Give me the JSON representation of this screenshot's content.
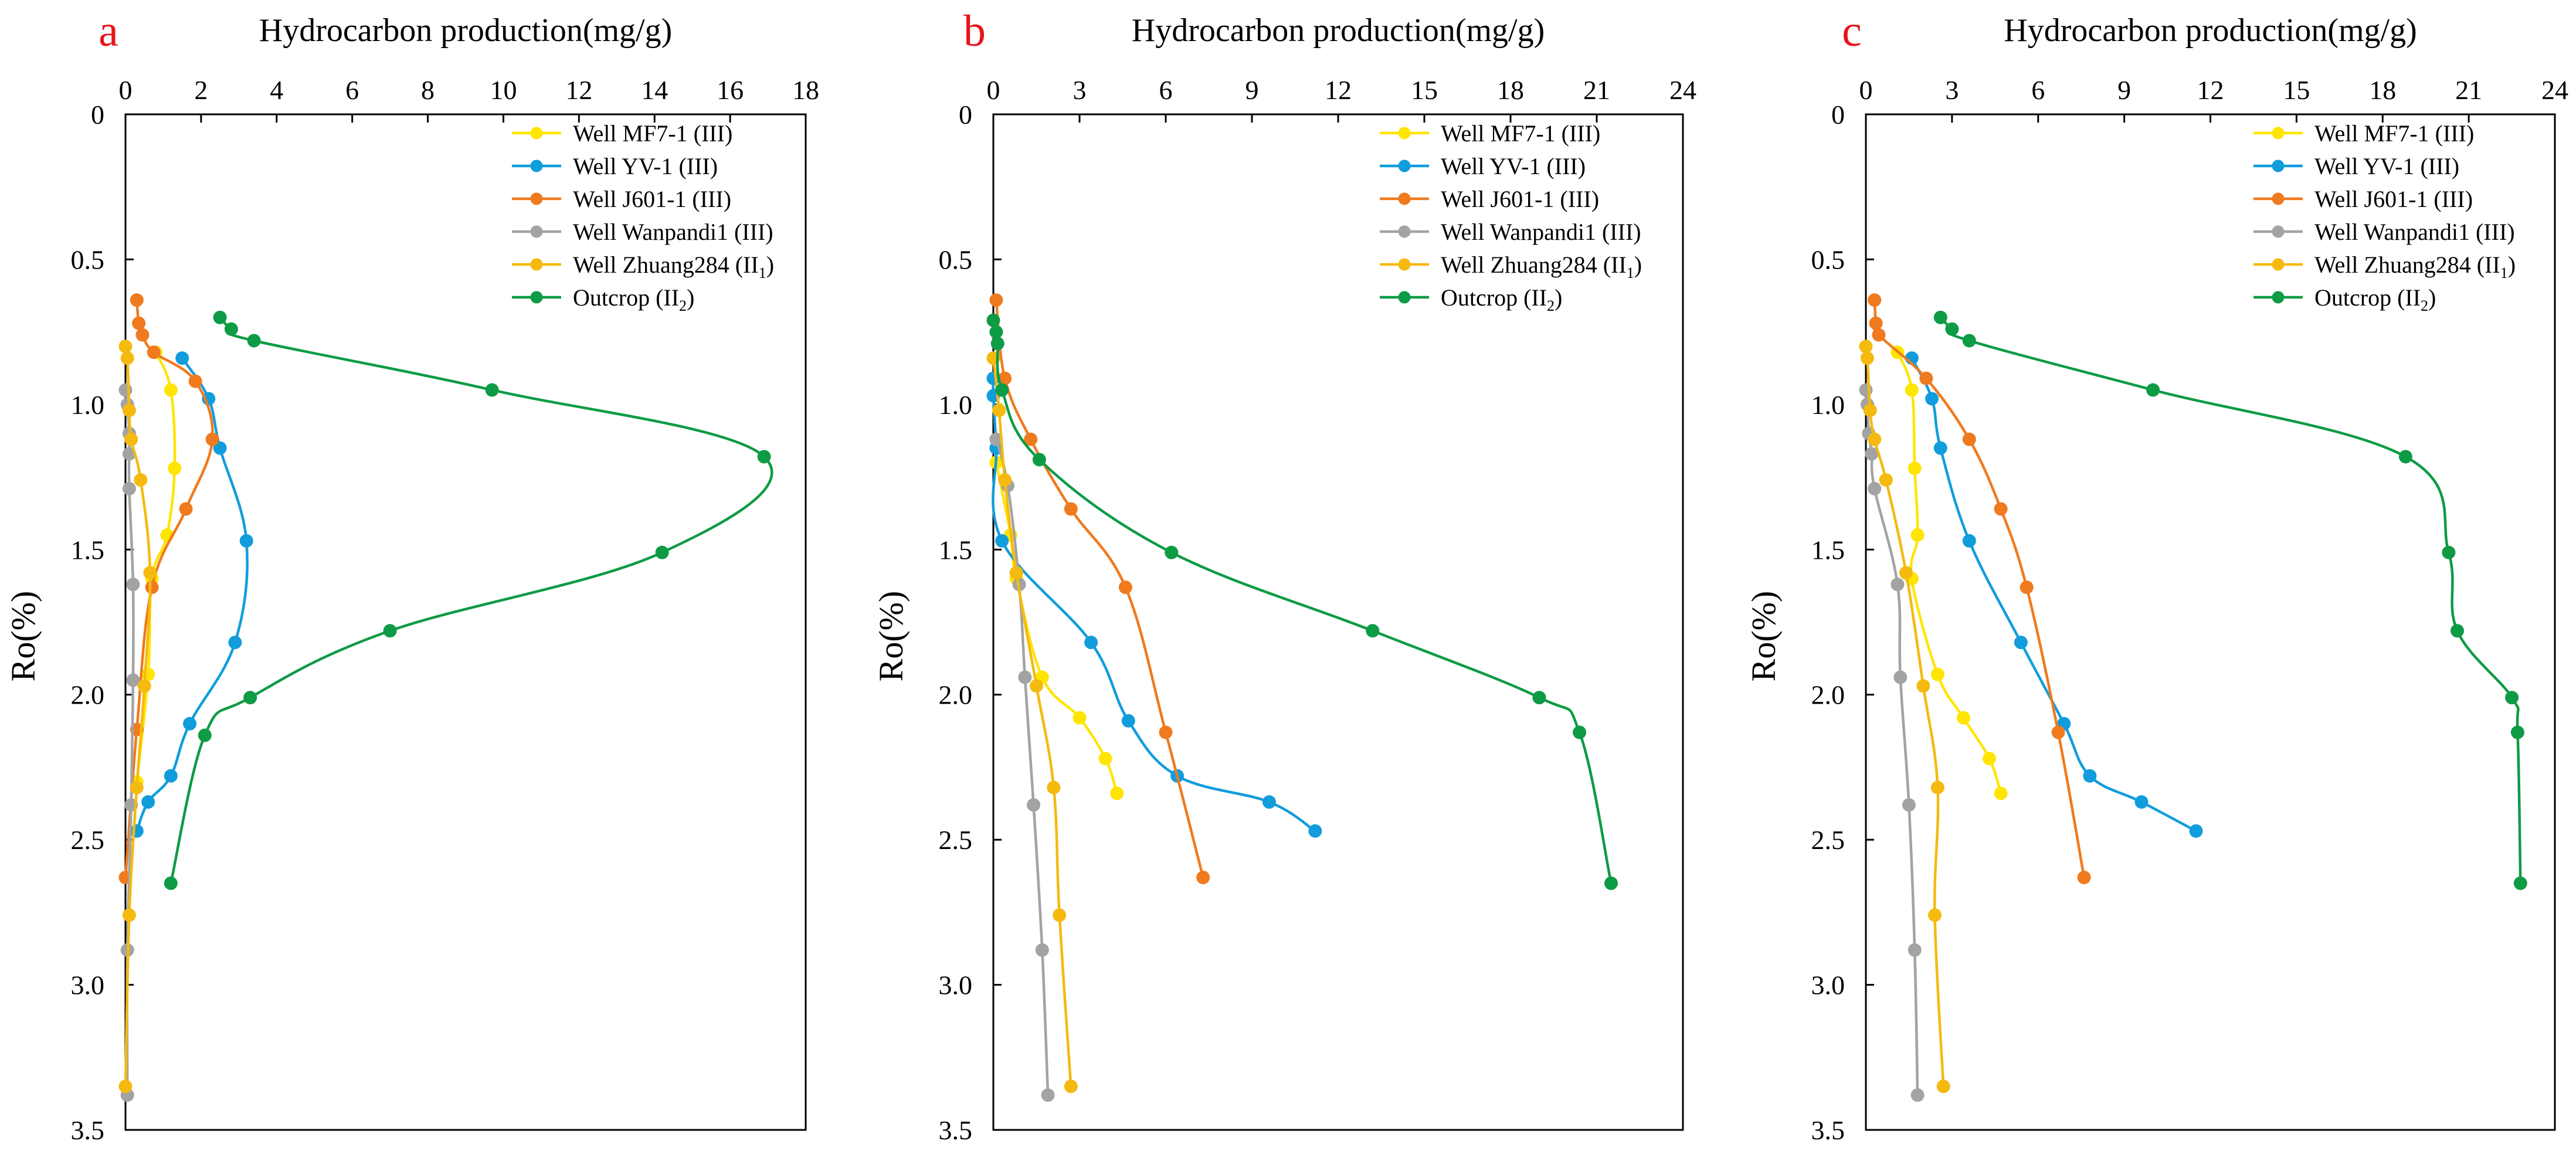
{
  "colors": {
    "mf7": "#FFE500",
    "yv": "#119DDC",
    "j601": "#F07A1E",
    "wanpandi": "#A3A3A3",
    "zhuang": "#F5BA10",
    "outcrop": "#0E9B45",
    "panel_letter": "#E8141B",
    "axis": "#000000"
  },
  "chart_data": [
    {
      "type": "line",
      "panel_label": "a",
      "title": "Hydrocarbon production(mg/g)",
      "xlabel": "",
      "ylabel": "Ro(%)",
      "xlim": [
        0,
        18
      ],
      "ylim": [
        0,
        3.5
      ],
      "y_inverted": true,
      "x_axis_position": "top",
      "xticks": [
        "0",
        "2",
        "4",
        "6",
        "8",
        "10",
        "12",
        "14",
        "16",
        "18"
      ],
      "yticks": [
        "0",
        "0.5",
        "1.0",
        "1.5",
        "2.0",
        "2.5",
        "3.0",
        "3.5"
      ],
      "legend": "top-right",
      "series": [
        {
          "name": "Well MF7-1 (III)",
          "color_key": "mf7",
          "points": [
            [
              0.8,
              0.82
            ],
            [
              1.2,
              0.95
            ],
            [
              1.3,
              1.22
            ],
            [
              1.1,
              1.45
            ],
            [
              0.7,
              1.6
            ],
            [
              0.6,
              1.93
            ],
            [
              0.3,
              2.3
            ]
          ]
        },
        {
          "name": "Well YV-1 (III)",
          "color_key": "yv",
          "points": [
            [
              1.5,
              0.84
            ],
            [
              2.2,
              0.98
            ],
            [
              2.5,
              1.15
            ],
            [
              3.2,
              1.47
            ],
            [
              2.9,
              1.82
            ],
            [
              1.7,
              2.1
            ],
            [
              1.2,
              2.28
            ],
            [
              0.6,
              2.37
            ],
            [
              0.3,
              2.47
            ]
          ]
        },
        {
          "name": "Well J601-1 (III)",
          "color_key": "j601",
          "points": [
            [
              0.3,
              0.64
            ],
            [
              0.35,
              0.72
            ],
            [
              0.45,
              0.76
            ],
            [
              0.75,
              0.82
            ],
            [
              1.85,
              0.92
            ],
            [
              2.3,
              1.12
            ],
            [
              1.6,
              1.36
            ],
            [
              0.7,
              1.63
            ],
            [
              0.3,
              2.12
            ],
            [
              0.0,
              2.63
            ]
          ]
        },
        {
          "name": "Well Wanpandi1 (III)",
          "color_key": "wanpandi",
          "points": [
            [
              0.0,
              0.95
            ],
            [
              0.05,
              1.0
            ],
            [
              0.1,
              1.1
            ],
            [
              0.1,
              1.17
            ],
            [
              0.1,
              1.29
            ],
            [
              0.2,
              1.62
            ],
            [
              0.2,
              1.95
            ],
            [
              0.15,
              2.38
            ],
            [
              0.05,
              2.88
            ],
            [
              0.05,
              3.38
            ]
          ]
        },
        {
          "name": "Well Zhuang284 (II",
          "subscript": "1",
          "name_suffix": ")",
          "color_key": "zhuang",
          "points": [
            [
              0.0,
              0.8
            ],
            [
              0.05,
              0.84
            ],
            [
              0.1,
              1.02
            ],
            [
              0.15,
              1.12
            ],
            [
              0.4,
              1.26
            ],
            [
              0.65,
              1.58
            ],
            [
              0.5,
              1.97
            ],
            [
              0.3,
              2.32
            ],
            [
              0.1,
              2.76
            ],
            [
              0.0,
              3.35
            ]
          ]
        },
        {
          "name": "Outcrop (II",
          "subscript": "2",
          "name_suffix": ")",
          "color_key": "outcrop",
          "points": [
            [
              2.5,
              0.7
            ],
            [
              2.8,
              0.74
            ],
            [
              3.4,
              0.78
            ],
            [
              9.7,
              0.95
            ],
            [
              16.9,
              1.18
            ],
            [
              14.2,
              1.51
            ],
            [
              7.0,
              1.78
            ],
            [
              3.3,
              2.01
            ],
            [
              2.1,
              2.14
            ],
            [
              1.2,
              2.65
            ]
          ]
        }
      ]
    },
    {
      "type": "line",
      "panel_label": "b",
      "title": "Hydrocarbon production(mg/g)",
      "xlabel": "",
      "ylabel": "Ro(%)",
      "xlim": [
        0,
        24
      ],
      "ylim": [
        0,
        3.5
      ],
      "y_inverted": true,
      "x_axis_position": "top",
      "xticks": [
        "0",
        "3",
        "6",
        "9",
        "12",
        "15",
        "18",
        "21",
        "24"
      ],
      "yticks": [
        "0",
        "0.5",
        "1.0",
        "1.5",
        "2.0",
        "2.5",
        "3.0",
        "3.5"
      ],
      "legend": "top-right",
      "series": [
        {
          "name": "Well MF7-1 (III)",
          "color_key": "mf7",
          "points": [
            [
              0.1,
              1.2
            ],
            [
              0.6,
              1.45
            ],
            [
              0.8,
              1.6
            ],
            [
              1.7,
              1.94
            ],
            [
              3.0,
              2.08
            ],
            [
              3.9,
              2.22
            ],
            [
              4.3,
              2.34
            ]
          ]
        },
        {
          "name": "Well YV-1 (III)",
          "color_key": "yv",
          "points": [
            [
              0.0,
              0.91
            ],
            [
              0.0,
              0.97
            ],
            [
              0.1,
              1.15
            ],
            [
              0.3,
              1.47
            ],
            [
              3.4,
              1.82
            ],
            [
              4.7,
              2.09
            ],
            [
              6.4,
              2.28
            ],
            [
              9.6,
              2.37
            ],
            [
              11.2,
              2.47
            ]
          ]
        },
        {
          "name": "Well J601-1 (III)",
          "color_key": "j601",
          "points": [
            [
              0.1,
              0.64
            ],
            [
              0.4,
              0.91
            ],
            [
              1.3,
              1.12
            ],
            [
              2.7,
              1.36
            ],
            [
              4.6,
              1.63
            ],
            [
              6.0,
              2.13
            ],
            [
              7.3,
              2.63
            ]
          ]
        },
        {
          "name": "Well Wanpandi1 (III)",
          "color_key": "wanpandi",
          "points": [
            [
              0.1,
              1.12
            ],
            [
              0.5,
              1.28
            ],
            [
              0.9,
              1.62
            ],
            [
              1.1,
              1.94
            ],
            [
              1.4,
              2.38
            ],
            [
              1.7,
              2.88
            ],
            [
              1.9,
              3.38
            ]
          ]
        },
        {
          "name": "Well Zhuang284 (II",
          "subscript": "1",
          "name_suffix": ")",
          "color_key": "zhuang",
          "points": [
            [
              0.0,
              0.84
            ],
            [
              0.2,
              1.02
            ],
            [
              0.4,
              1.26
            ],
            [
              0.8,
              1.58
            ],
            [
              1.5,
              1.97
            ],
            [
              2.1,
              2.32
            ],
            [
              2.3,
              2.76
            ],
            [
              2.7,
              3.35
            ]
          ]
        },
        {
          "name": "Outcrop (II",
          "subscript": "2",
          "name_suffix": ")",
          "color_key": "outcrop",
          "points": [
            [
              0.0,
              0.71
            ],
            [
              0.1,
              0.75
            ],
            [
              0.15,
              0.79
            ],
            [
              0.3,
              0.95
            ],
            [
              1.6,
              1.19
            ],
            [
              6.2,
              1.51
            ],
            [
              13.2,
              1.78
            ],
            [
              19.0,
              2.01
            ],
            [
              20.4,
              2.13
            ],
            [
              21.5,
              2.65
            ]
          ]
        }
      ]
    },
    {
      "type": "line",
      "panel_label": "c",
      "title": "Hydrocarbon production(mg/g)",
      "xlabel": "",
      "ylabel": "Ro(%)",
      "xlim": [
        0,
        24
      ],
      "ylim": [
        0,
        3.5
      ],
      "y_inverted": true,
      "x_axis_position": "top",
      "xticks": [
        "0",
        "3",
        "6",
        "9",
        "12",
        "15",
        "18",
        "21",
        "24"
      ],
      "yticks": [
        "0",
        "0.5",
        "1.0",
        "1.5",
        "2.0",
        "2.5",
        "3.0",
        "3.5"
      ],
      "legend": "top-right",
      "series": [
        {
          "name": "Well MF7-1 (III)",
          "color_key": "mf7",
          "points": [
            [
              1.1,
              0.82
            ],
            [
              1.6,
              0.95
            ],
            [
              1.7,
              1.22
            ],
            [
              1.8,
              1.45
            ],
            [
              1.6,
              1.6
            ],
            [
              2.5,
              1.93
            ],
            [
              3.4,
              2.08
            ],
            [
              4.3,
              2.22
            ],
            [
              4.7,
              2.34
            ]
          ]
        },
        {
          "name": "Well YV-1 (III)",
          "color_key": "yv",
          "points": [
            [
              1.6,
              0.84
            ],
            [
              2.3,
              0.98
            ],
            [
              2.6,
              1.15
            ],
            [
              3.6,
              1.47
            ],
            [
              5.4,
              1.82
            ],
            [
              6.9,
              2.1
            ],
            [
              7.8,
              2.28
            ],
            [
              9.6,
              2.37
            ],
            [
              11.5,
              2.47
            ]
          ]
        },
        {
          "name": "Well J601-1 (III)",
          "color_key": "j601",
          "points": [
            [
              0.3,
              0.64
            ],
            [
              0.35,
              0.72
            ],
            [
              0.45,
              0.76
            ],
            [
              2.1,
              0.91
            ],
            [
              3.6,
              1.12
            ],
            [
              4.7,
              1.36
            ],
            [
              5.6,
              1.63
            ],
            [
              6.7,
              2.13
            ],
            [
              7.6,
              2.63
            ]
          ]
        },
        {
          "name": "Well Wanpandi1 (III)",
          "color_key": "wanpandi",
          "points": [
            [
              0.0,
              0.95
            ],
            [
              0.05,
              1.0
            ],
            [
              0.1,
              1.1
            ],
            [
              0.2,
              1.17
            ],
            [
              0.3,
              1.29
            ],
            [
              1.1,
              1.62
            ],
            [
              1.2,
              1.94
            ],
            [
              1.5,
              2.38
            ],
            [
              1.7,
              2.88
            ],
            [
              1.8,
              3.38
            ]
          ]
        },
        {
          "name": "Well Zhuang284 (II",
          "subscript": "1",
          "name_suffix": ")",
          "color_key": "zhuang",
          "points": [
            [
              0.0,
              0.8
            ],
            [
              0.05,
              0.84
            ],
            [
              0.15,
              1.02
            ],
            [
              0.3,
              1.12
            ],
            [
              0.7,
              1.26
            ],
            [
              1.4,
              1.58
            ],
            [
              2.0,
              1.97
            ],
            [
              2.5,
              2.32
            ],
            [
              2.4,
              2.76
            ],
            [
              2.7,
              3.35
            ]
          ]
        },
        {
          "name": "Outcrop (II",
          "subscript": "2",
          "name_suffix": ")",
          "color_key": "outcrop",
          "points": [
            [
              2.6,
              0.7
            ],
            [
              3.0,
              0.74
            ],
            [
              3.6,
              0.78
            ],
            [
              10.0,
              0.95
            ],
            [
              18.8,
              1.18
            ],
            [
              20.3,
              1.51
            ],
            [
              20.6,
              1.78
            ],
            [
              22.5,
              2.01
            ],
            [
              22.7,
              2.13
            ],
            [
              22.8,
              2.65
            ]
          ]
        }
      ]
    }
  ]
}
